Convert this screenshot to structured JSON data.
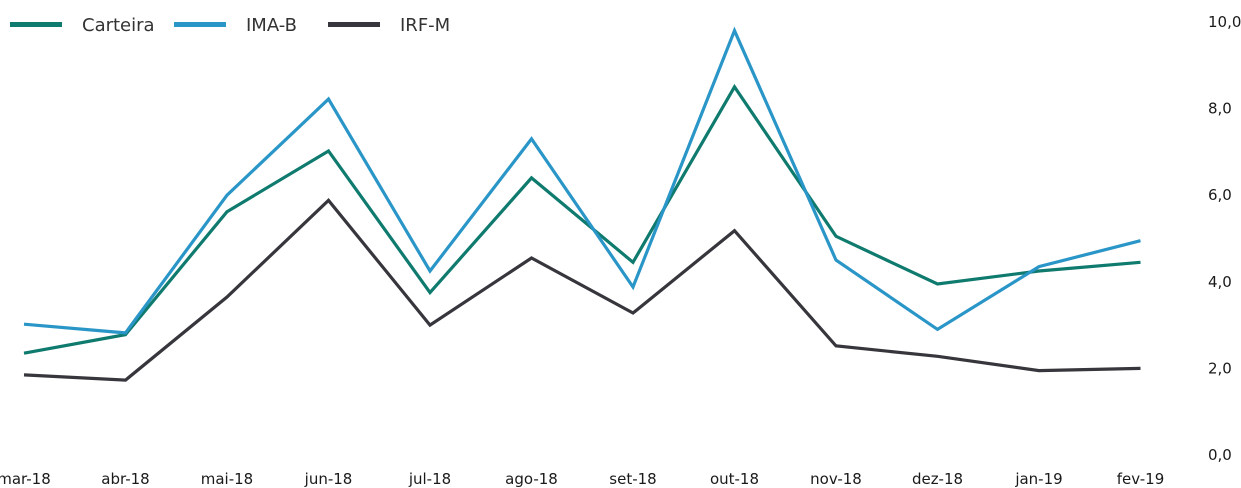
{
  "chart_data": {
    "type": "line",
    "categories": [
      "mar-18",
      "abr-18",
      "mai-18",
      "jun-18",
      "jul-18",
      "ago-18",
      "set-18",
      "out-18",
      "nov-18",
      "dez-18",
      "jan-19",
      "fev-19"
    ],
    "series": [
      {
        "name": "Carteira",
        "color": "#0f7a6e",
        "values": [
          2.35,
          2.78,
          5.62,
          7.02,
          3.75,
          6.4,
          4.45,
          8.5,
          5.05,
          3.95,
          4.25,
          4.45
        ]
      },
      {
        "name": "IMA-B",
        "color": "#2a96c8",
        "values": [
          3.02,
          2.82,
          6.0,
          8.22,
          4.25,
          7.3,
          3.88,
          9.8,
          4.5,
          2.9,
          4.35,
          4.95
        ]
      },
      {
        "name": "IRF-M",
        "color": "#36363c",
        "values": [
          1.85,
          1.73,
          3.65,
          5.88,
          3.0,
          4.55,
          3.28,
          5.18,
          2.52,
          2.28,
          1.95,
          2.0
        ]
      }
    ],
    "yaxis": {
      "min": 0,
      "max": 10,
      "ticks": [
        "0,0",
        "2,0",
        "4,0",
        "6,0",
        "8,0",
        "10,0"
      ],
      "position": "right"
    },
    "legend": {
      "position": "top-left"
    },
    "grid": false
  }
}
